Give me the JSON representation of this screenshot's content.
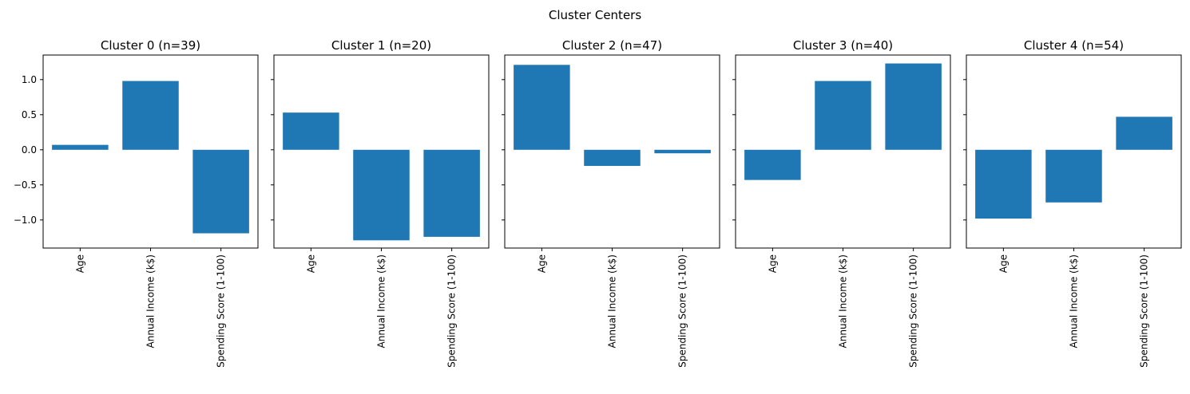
{
  "suptitle": "Cluster Centers",
  "colors": {
    "bar": "#1f77b4",
    "axis": "#000000",
    "background": "#ffffff"
  },
  "chart_data": {
    "type": "bar",
    "categories": [
      "Age",
      "Annual Income (k$)",
      "Spending Score (1-100)"
    ],
    "ylim": [
      -1.4,
      1.35
    ],
    "yticks": [
      {
        "value": -1.0,
        "label": "−1.0"
      },
      {
        "value": -0.5,
        "label": "−0.5"
      },
      {
        "value": 0.0,
        "label": "0.0"
      },
      {
        "value": 0.5,
        "label": "0.5"
      },
      {
        "value": 1.0,
        "label": "1.0"
      }
    ],
    "grid": false,
    "sharey": true,
    "panels": [
      {
        "title": "Cluster 0 (n=39)",
        "values": [
          0.07,
          0.98,
          -1.19
        ]
      },
      {
        "title": "Cluster 1 (n=20)",
        "values": [
          0.53,
          -1.29,
          -1.24
        ]
      },
      {
        "title": "Cluster 2 (n=47)",
        "values": [
          1.21,
          -0.23,
          -0.05
        ]
      },
      {
        "title": "Cluster 3 (n=40)",
        "values": [
          -0.43,
          0.98,
          1.23
        ]
      },
      {
        "title": "Cluster 4 (n=54)",
        "values": [
          -0.98,
          -0.75,
          0.47
        ]
      }
    ]
  }
}
